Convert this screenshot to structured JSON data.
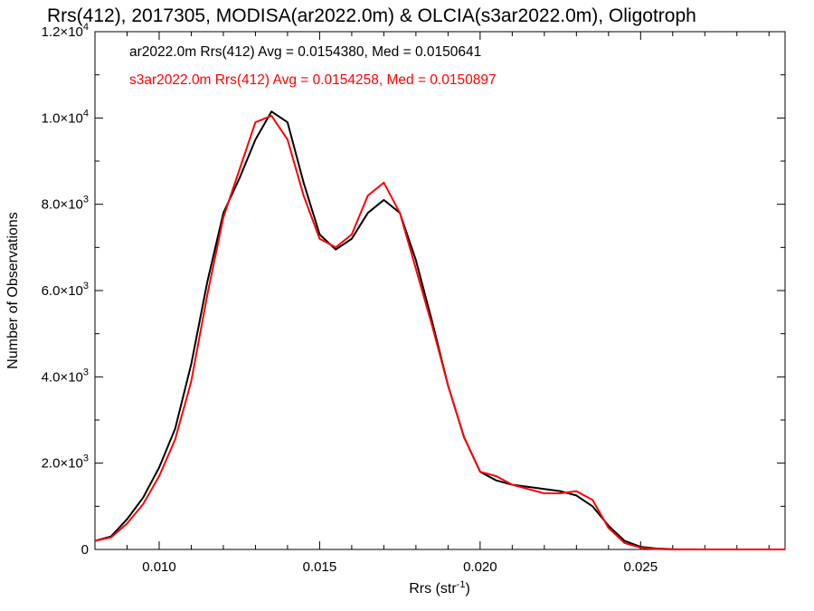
{
  "chart_data": {
    "type": "line",
    "title": "Rrs(412), 2017305, MODISA(ar2022.0m) & OLCIA(s3ar2022.0m), Oligotroph",
    "xlabel": "Rrs (str",
    "xlabel_sup": "-1",
    "xlabel_end": ")",
    "ylabel": "Number of Observations",
    "xlim": [
      0.008,
      0.0295
    ],
    "ylim": [
      0,
      12000
    ],
    "grid": false,
    "legend_position": "top-left",
    "x_ticks": [
      {
        "value": 0.01,
        "label": "0.010"
      },
      {
        "value": 0.015,
        "label": "0.015"
      },
      {
        "value": 0.02,
        "label": "0.020"
      },
      {
        "value": 0.025,
        "label": "0.025"
      }
    ],
    "y_ticks": [
      {
        "value": 0,
        "mant": "0",
        "exp": ""
      },
      {
        "value": 2000,
        "mant": "2.0×10",
        "exp": "3"
      },
      {
        "value": 4000,
        "mant": "4.0×10",
        "exp": "3"
      },
      {
        "value": 6000,
        "mant": "6.0×10",
        "exp": "3"
      },
      {
        "value": 8000,
        "mant": "8.0×10",
        "exp": "3"
      },
      {
        "value": 10000,
        "mant": "1.0×10",
        "exp": "4"
      },
      {
        "value": 12000,
        "mant": "1.2×10",
        "exp": "4"
      }
    ],
    "series": [
      {
        "name": "ar2022.0m",
        "color": "#000000",
        "annotation": "ar2022.0m Rrs(412) Avg = 0.0154380, Med = 0.0150641",
        "points": [
          [
            0.008,
            200
          ],
          [
            0.0085,
            300
          ],
          [
            0.009,
            700
          ],
          [
            0.0095,
            1200
          ],
          [
            0.01,
            1900
          ],
          [
            0.0105,
            2800
          ],
          [
            0.011,
            4300
          ],
          [
            0.0115,
            6200
          ],
          [
            0.012,
            7800
          ],
          [
            0.0125,
            8600
          ],
          [
            0.013,
            9500
          ],
          [
            0.0135,
            10150
          ],
          [
            0.014,
            9900
          ],
          [
            0.0145,
            8500
          ],
          [
            0.015,
            7300
          ],
          [
            0.0155,
            6950
          ],
          [
            0.016,
            7200
          ],
          [
            0.0165,
            7800
          ],
          [
            0.017,
            8100
          ],
          [
            0.0175,
            7800
          ],
          [
            0.018,
            6700
          ],
          [
            0.0185,
            5300
          ],
          [
            0.019,
            3800
          ],
          [
            0.0195,
            2600
          ],
          [
            0.02,
            1800
          ],
          [
            0.0205,
            1600
          ],
          [
            0.021,
            1500
          ],
          [
            0.0215,
            1450
          ],
          [
            0.022,
            1400
          ],
          [
            0.0225,
            1350
          ],
          [
            0.023,
            1250
          ],
          [
            0.0235,
            1000
          ],
          [
            0.024,
            550
          ],
          [
            0.0245,
            200
          ],
          [
            0.025,
            60
          ],
          [
            0.0255,
            20
          ],
          [
            0.026,
            5
          ],
          [
            0.027,
            0
          ],
          [
            0.0295,
            0
          ]
        ]
      },
      {
        "name": "s3ar2022.0m",
        "color": "#ff0000",
        "annotation": "s3ar2022.0m Rrs(412) Avg = 0.0154258, Med = 0.0150897",
        "points": [
          [
            0.008,
            200
          ],
          [
            0.0085,
            280
          ],
          [
            0.009,
            600
          ],
          [
            0.0095,
            1050
          ],
          [
            0.01,
            1700
          ],
          [
            0.0105,
            2550
          ],
          [
            0.011,
            3900
          ],
          [
            0.0115,
            5900
          ],
          [
            0.012,
            7700
          ],
          [
            0.0125,
            8800
          ],
          [
            0.013,
            9900
          ],
          [
            0.0135,
            10050
          ],
          [
            0.014,
            9500
          ],
          [
            0.0145,
            8200
          ],
          [
            0.015,
            7200
          ],
          [
            0.0155,
            7000
          ],
          [
            0.016,
            7300
          ],
          [
            0.0165,
            8200
          ],
          [
            0.017,
            8500
          ],
          [
            0.0175,
            7800
          ],
          [
            0.018,
            6500
          ],
          [
            0.0185,
            5200
          ],
          [
            0.019,
            3800
          ],
          [
            0.0195,
            2600
          ],
          [
            0.02,
            1800
          ],
          [
            0.0205,
            1700
          ],
          [
            0.021,
            1500
          ],
          [
            0.0215,
            1400
          ],
          [
            0.022,
            1300
          ],
          [
            0.0225,
            1300
          ],
          [
            0.023,
            1350
          ],
          [
            0.0235,
            1150
          ],
          [
            0.024,
            500
          ],
          [
            0.0245,
            150
          ],
          [
            0.025,
            40
          ],
          [
            0.0255,
            10
          ],
          [
            0.026,
            0
          ],
          [
            0.0295,
            0
          ]
        ]
      }
    ]
  }
}
